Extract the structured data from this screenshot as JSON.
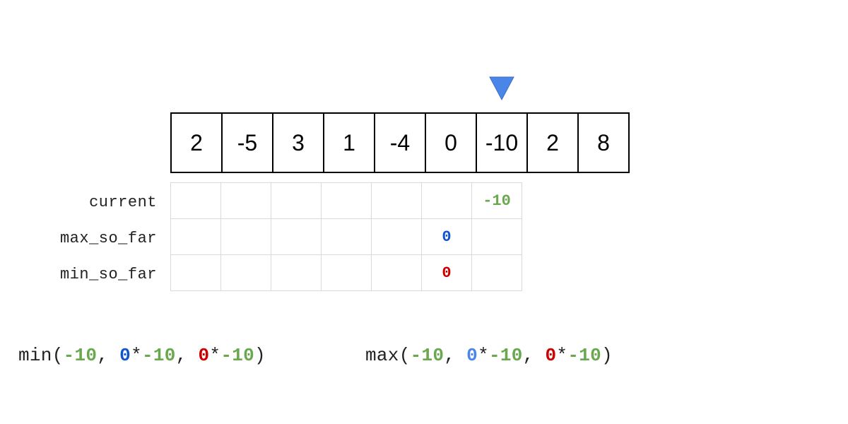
{
  "pointer": {
    "index": 6,
    "color": "#4a86e8"
  },
  "array": [
    "2",
    "-5",
    "3",
    "1",
    "-4",
    "0",
    "-10",
    "2",
    "8"
  ],
  "dp_table": {
    "row_labels": [
      "current",
      "max_so_far",
      "min_so_far"
    ],
    "rows": [
      [
        "",
        "",
        "",
        "",
        "",
        "",
        "-10"
      ],
      [
        "",
        "",
        "",
        "",
        "",
        "0",
        ""
      ],
      [
        "",
        "",
        "",
        "",
        "",
        "0",
        ""
      ]
    ],
    "row_colors": [
      "#6aa84f",
      "#1155cc",
      "#cc0000"
    ]
  },
  "formulas": {
    "min": [
      "min(",
      "-10",
      ", ",
      "0",
      "*",
      "-10",
      ", ",
      "0",
      "*",
      "-10",
      ")"
    ],
    "max": [
      "max(",
      "-10",
      ", ",
      "0",
      "*",
      "-10",
      ", ",
      "0",
      "*",
      "-10",
      ")"
    ]
  },
  "colors": {
    "current": "#6aa84f",
    "max_so_far": "#1155cc",
    "max_so_far_light": "#4a86e8",
    "min_so_far": "#cc0000"
  }
}
